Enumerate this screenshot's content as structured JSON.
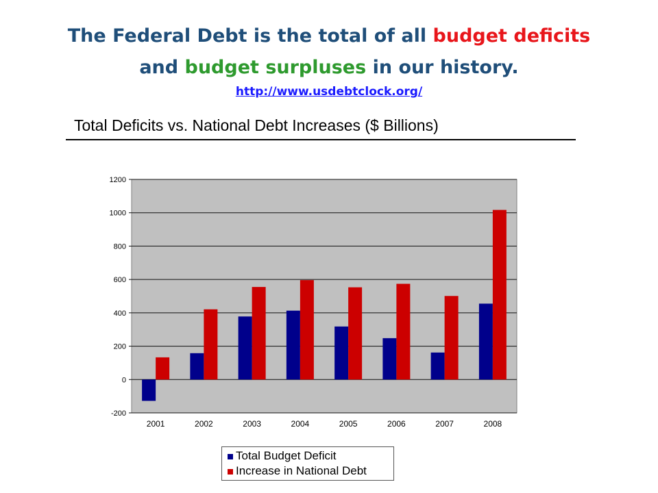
{
  "header": {
    "line1_a": "The Federal Debt is the total of all ",
    "line1_red": "budget deficits",
    "line2_a": "and ",
    "line2_green": "budget surpluses",
    "line2_b": " in our history.",
    "link": "http://www.usdebtclock.org/"
  },
  "colors": {
    "title_blue": "#1f4e79",
    "deficit_red": "#e8161b",
    "surplus_green": "#2e9a2e",
    "link_blue": "#1a1aff",
    "series_deficit": "#00008b",
    "series_debt": "#cc0000",
    "plot_bg": "#c0c0c0"
  },
  "chart_data": {
    "type": "bar",
    "title": "Total Deficits vs. National Debt Increases ($ Billions)",
    "categories": [
      "2001",
      "2002",
      "2003",
      "2004",
      "2005",
      "2006",
      "2007",
      "2008"
    ],
    "series": [
      {
        "name": "Total Budget Deficit",
        "values": [
          -128,
          158,
          378,
          413,
          318,
          248,
          162,
          455
        ]
      },
      {
        "name": "Increase in National Debt",
        "values": [
          133,
          421,
          555,
          596,
          553,
          574,
          501,
          1017
        ]
      }
    ],
    "ylim": [
      -200,
      1200
    ],
    "yticks": [
      -200,
      0,
      200,
      400,
      600,
      800,
      1000,
      1200
    ],
    "xlabel": "",
    "ylabel": "",
    "grid": true,
    "legend_position": "bottom"
  }
}
